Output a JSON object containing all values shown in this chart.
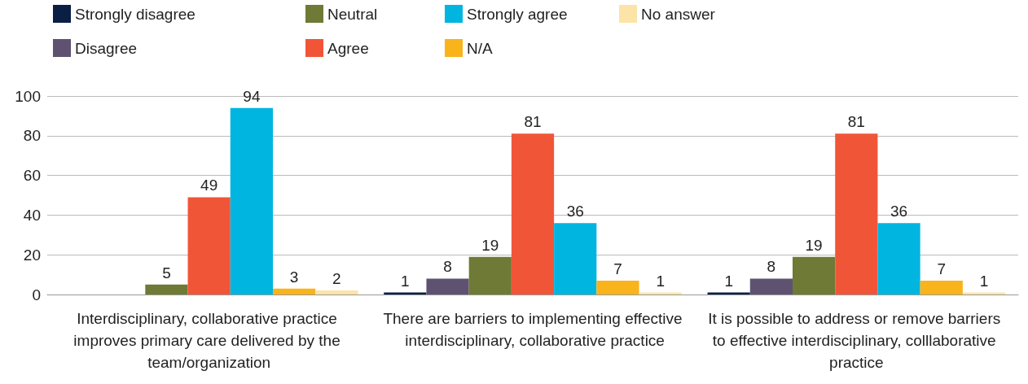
{
  "chart_data": {
    "type": "bar",
    "categories": [
      "Interdisciplinary, collaborative practice improves primary care delivered by the team/organization",
      "There are barriers to implementing effective interdisciplinary, collaborative practice",
      "It is possible to address or remove barriers to effective interdisciplinary, colllaborative practice"
    ],
    "series": [
      {
        "name": "Strongly disagree",
        "color": "#0b1f45",
        "values": [
          null,
          1,
          1
        ]
      },
      {
        "name": "Disagree",
        "color": "#5f5271",
        "values": [
          null,
          8,
          8
        ]
      },
      {
        "name": "Neutral",
        "color": "#6e7a35",
        "values": [
          5,
          19,
          19
        ]
      },
      {
        "name": "Agree",
        "color": "#f15538",
        "values": [
          49,
          81,
          81
        ]
      },
      {
        "name": "Strongly agree",
        "color": "#00b5df",
        "values": [
          94,
          36,
          36
        ]
      },
      {
        "name": "N/A",
        "color": "#f9b31b",
        "values": [
          3,
          7,
          7
        ]
      },
      {
        "name": "No answer",
        "color": "#fce4a8",
        "values": [
          2,
          1,
          1
        ]
      }
    ],
    "ylim": [
      0,
      100
    ],
    "yticks": [
      0,
      20,
      40,
      60,
      80,
      100
    ],
    "grid": "y",
    "legend": "top left",
    "data_labels": true
  }
}
